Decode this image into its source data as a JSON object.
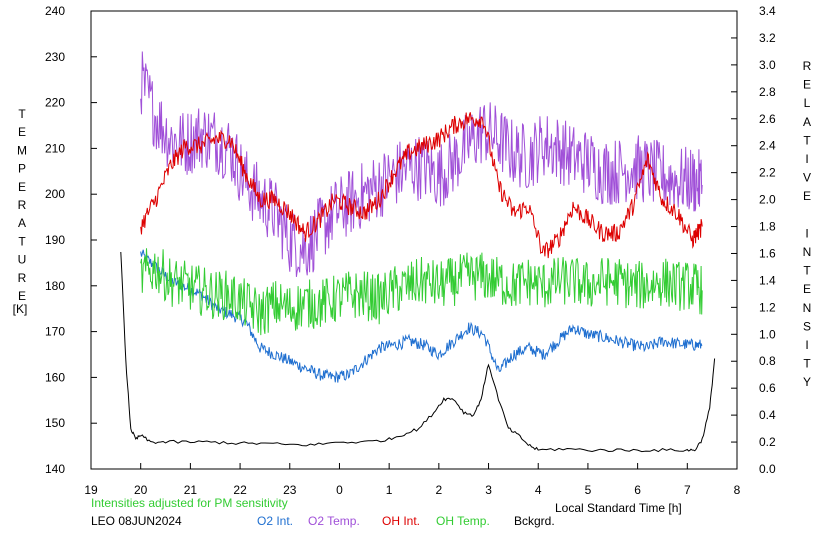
{
  "chart_data": {
    "type": "line",
    "title": "",
    "left_axis": {
      "label": "TEMPERATURE",
      "unit": "[K]",
      "ylim": [
        140,
        240
      ],
      "ticks": [
        140,
        150,
        160,
        170,
        180,
        190,
        200,
        210,
        220,
        230,
        240
      ]
    },
    "right_axis": {
      "label": "RELATIVE INTENSITY",
      "ylim": [
        0.0,
        3.4
      ],
      "ticks": [
        "0.0",
        "0.2",
        "0.4",
        "0.6",
        "0.8",
        "1.0",
        "1.2",
        "1.4",
        "1.6",
        "1.8",
        "2.0",
        "2.2",
        "2.4",
        "2.6",
        "2.8",
        "3.0",
        "3.2",
        "3.4"
      ]
    },
    "x_axis": {
      "label": "Local Standard Time [h]",
      "xlim": [
        19,
        32
      ],
      "ticks": [
        "19",
        "20",
        "21",
        "22",
        "23",
        "0",
        "1",
        "2",
        "3",
        "4",
        "5",
        "6",
        "7",
        "8"
      ]
    },
    "grid": false,
    "note": "Intensities adjusted for PM sensitivity",
    "station": "LEO 08JUN2024",
    "series": [
      {
        "name": "O2 Int.",
        "axis": "right",
        "color": "#1f6fd0",
        "x": [
          20.0,
          20.3,
          20.6,
          20.9,
          21.2,
          21.5,
          21.8,
          22.1,
          22.4,
          22.7,
          23.0,
          23.3,
          23.6,
          23.9,
          24.2,
          24.5,
          24.8,
          25.1,
          25.4,
          25.7,
          26.0,
          26.3,
          26.6,
          26.9,
          27.2,
          27.5,
          27.8,
          28.1,
          28.4,
          28.7,
          29.0,
          29.3,
          29.6,
          29.9,
          30.2,
          30.5,
          30.8,
          31.1,
          31.3
        ],
        "y": [
          1.6,
          1.5,
          1.4,
          1.35,
          1.3,
          1.2,
          1.15,
          1.1,
          0.9,
          0.85,
          0.8,
          0.75,
          0.7,
          0.68,
          0.7,
          0.8,
          0.9,
          0.92,
          0.95,
          0.92,
          0.85,
          0.95,
          1.05,
          1.0,
          0.72,
          0.85,
          0.9,
          0.85,
          0.95,
          1.05,
          1.0,
          0.98,
          0.95,
          0.92,
          0.9,
          0.95,
          0.93,
          0.92,
          0.92
        ]
      },
      {
        "name": "O2 Temp.",
        "axis": "left",
        "color": "#a050d8",
        "x": [
          20.0,
          20.3,
          20.6,
          20.9,
          21.2,
          21.5,
          21.8,
          22.1,
          22.4,
          22.7,
          23.0,
          23.3,
          23.6,
          23.9,
          24.2,
          24.5,
          24.8,
          25.1,
          25.4,
          25.7,
          26.0,
          26.3,
          26.6,
          26.9,
          27.2,
          27.5,
          27.8,
          28.1,
          28.4,
          28.7,
          29.0,
          29.3,
          29.6,
          29.9,
          30.2,
          30.5,
          30.8,
          31.1,
          31.3
        ],
        "y": [
          225,
          217,
          212,
          211,
          213,
          212,
          210,
          203,
          199,
          196,
          190,
          188,
          192,
          196,
          198,
          200,
          202,
          204,
          206,
          206,
          204,
          207,
          211,
          214,
          212,
          209,
          208,
          211,
          210,
          208,
          207,
          205,
          205,
          206,
          205,
          204,
          203,
          203,
          202
        ]
      },
      {
        "name": "OH Int.",
        "axis": "right",
        "color": "#dd0000",
        "x": [
          20.0,
          20.3,
          20.6,
          20.9,
          21.2,
          21.5,
          21.8,
          22.1,
          22.4,
          22.7,
          23.0,
          23.3,
          23.6,
          23.9,
          24.2,
          24.5,
          24.8,
          25.1,
          25.4,
          25.7,
          26.0,
          26.3,
          26.6,
          26.9,
          27.2,
          27.5,
          27.8,
          28.1,
          28.4,
          28.7,
          29.0,
          29.3,
          29.6,
          29.9,
          30.2,
          30.5,
          30.8,
          31.1,
          31.3
        ],
        "y": [
          1.8,
          2.0,
          2.25,
          2.4,
          2.4,
          2.45,
          2.45,
          2.2,
          2.0,
          2.0,
          1.9,
          1.75,
          1.85,
          2.0,
          1.95,
          1.9,
          2.0,
          2.2,
          2.35,
          2.4,
          2.45,
          2.55,
          2.6,
          2.6,
          2.1,
          1.9,
          1.95,
          1.6,
          1.7,
          1.95,
          1.85,
          1.75,
          1.75,
          1.95,
          2.3,
          2.0,
          1.9,
          1.7,
          1.8
        ]
      },
      {
        "name": "OH Temp.",
        "axis": "left",
        "color": "#33cc33",
        "x": [
          20.0,
          20.3,
          20.6,
          20.9,
          21.2,
          21.5,
          21.8,
          22.1,
          22.4,
          22.7,
          23.0,
          23.3,
          23.6,
          23.9,
          24.2,
          24.5,
          24.8,
          25.1,
          25.4,
          25.7,
          26.0,
          26.3,
          26.6,
          26.9,
          27.2,
          27.5,
          27.8,
          28.1,
          28.4,
          28.7,
          29.0,
          29.3,
          29.6,
          29.9,
          30.2,
          30.5,
          30.8,
          31.1,
          31.3
        ],
        "y": [
          182,
          184,
          181,
          180,
          179,
          178,
          178,
          176,
          174,
          176,
          175,
          176,
          176,
          177,
          178,
          178,
          177,
          179,
          180,
          181,
          180,
          181,
          182,
          182,
          181,
          180,
          181,
          180,
          181,
          181,
          180,
          181,
          181,
          180,
          180,
          181,
          180,
          180,
          179
        ]
      },
      {
        "name": "Bckgrd.",
        "axis": "right",
        "color": "#000000",
        "x": [
          19.6,
          19.7,
          19.8,
          19.9,
          20.0,
          20.2,
          20.5,
          21.0,
          21.5,
          22.0,
          22.5,
          23.0,
          23.5,
          24.0,
          24.5,
          25.0,
          25.3,
          25.6,
          25.9,
          26.1,
          26.3,
          26.5,
          26.7,
          26.85,
          27.0,
          27.2,
          27.4,
          27.6,
          27.8,
          28.0,
          28.5,
          29.0,
          29.5,
          30.0,
          30.5,
          31.0,
          31.15,
          31.3,
          31.45,
          31.55
        ],
        "y": [
          1.62,
          0.8,
          0.3,
          0.22,
          0.25,
          0.2,
          0.2,
          0.2,
          0.2,
          0.19,
          0.19,
          0.18,
          0.18,
          0.2,
          0.2,
          0.22,
          0.26,
          0.3,
          0.42,
          0.52,
          0.52,
          0.42,
          0.4,
          0.52,
          0.78,
          0.52,
          0.3,
          0.25,
          0.18,
          0.14,
          0.15,
          0.14,
          0.14,
          0.14,
          0.14,
          0.14,
          0.14,
          0.22,
          0.45,
          0.82
        ]
      }
    ]
  },
  "legend": {
    "note": "Intensities adjusted for PM sensitivity",
    "station": "LEO 08JUN2024",
    "o2_int": "O2 Int.",
    "o2_temp": "O2 Temp.",
    "oh_int": "OH Int.",
    "oh_temp": "OH Temp.",
    "bckgrd": "Bckgrd.",
    "colors": {
      "note": "#33cc33",
      "o2_int": "#1f6fd0",
      "o2_temp": "#a050d8",
      "oh_int": "#dd0000",
      "oh_temp": "#33cc33",
      "bckgrd": "#000000"
    }
  }
}
